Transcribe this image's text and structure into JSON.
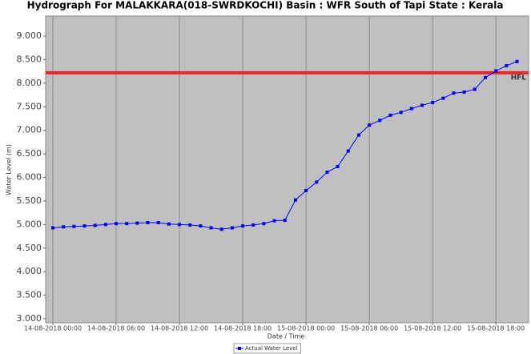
{
  "chart_data": {
    "type": "line",
    "title": "Hydrograph For MALAKKARA(018-SWRDKOCHI) Basin : WFR South of Tapi State : Kerala",
    "x_label": "Date / Time",
    "y_label": "Water Level (m)",
    "x": [
      "2018-08-14T00:00",
      "2018-08-14T01:00",
      "2018-08-14T02:00",
      "2018-08-14T03:00",
      "2018-08-14T04:00",
      "2018-08-14T05:00",
      "2018-08-14T06:00",
      "2018-08-14T07:00",
      "2018-08-14T08:00",
      "2018-08-14T09:00",
      "2018-08-14T10:00",
      "2018-08-14T11:00",
      "2018-08-14T12:00",
      "2018-08-14T13:00",
      "2018-08-14T14:00",
      "2018-08-14T15:00",
      "2018-08-14T16:00",
      "2018-08-14T17:00",
      "2018-08-14T18:00",
      "2018-08-14T19:00",
      "2018-08-14T20:00",
      "2018-08-14T21:00",
      "2018-08-14T22:00",
      "2018-08-14T23:00",
      "2018-08-15T00:00",
      "2018-08-15T01:00",
      "2018-08-15T02:00",
      "2018-08-15T03:00",
      "2018-08-15T04:00",
      "2018-08-15T05:00",
      "2018-08-15T06:00",
      "2018-08-15T07:00",
      "2018-08-15T08:00",
      "2018-08-15T09:00",
      "2018-08-15T10:00",
      "2018-08-15T11:00",
      "2018-08-15T12:00",
      "2018-08-15T13:00",
      "2018-08-15T14:00",
      "2018-08-15T15:00",
      "2018-08-15T16:00",
      "2018-08-15T17:00",
      "2018-08-15T18:00",
      "2018-08-15T19:00",
      "2018-08-15T20:00"
    ],
    "series": [
      {
        "name": "Actual Water Level",
        "color": "#0000ff",
        "values": [
          4.93,
          4.95,
          4.96,
          4.97,
          4.98,
          5.0,
          5.02,
          5.02,
          5.03,
          5.04,
          5.04,
          5.01,
          5.0,
          4.99,
          4.97,
          4.93,
          4.9,
          4.93,
          4.97,
          4.99,
          5.02,
          5.08,
          5.09,
          5.52,
          5.72,
          5.9,
          6.11,
          6.23,
          6.56,
          6.9,
          7.11,
          7.21,
          7.32,
          7.38,
          7.46,
          7.53,
          7.59,
          7.68,
          7.79,
          7.81,
          7.87,
          8.12,
          8.26,
          8.37,
          8.46
        ]
      }
    ],
    "reference_line": {
      "label": "HFL",
      "value": 8.22,
      "color": "#e8262a"
    },
    "xlim": [
      "2018-08-13T23:19",
      "2018-08-15T21:06"
    ],
    "xticks": [
      {
        "value": "2018-08-14T00:00",
        "label": "14-08-2018 00:00"
      },
      {
        "value": "2018-08-14T06:00",
        "label": "14-08-2018 06:00"
      },
      {
        "value": "2018-08-14T12:00",
        "label": "14-08-2018 12:00"
      },
      {
        "value": "2018-08-14T18:00",
        "label": "14-08-2018 18:00"
      },
      {
        "value": "2018-08-15T00:00",
        "label": "15-08-2018 00:00"
      },
      {
        "value": "2018-08-15T06:00",
        "label": "15-08-2018 06:00"
      },
      {
        "value": "2018-08-15T12:00",
        "label": "15-08-2018 12:00"
      },
      {
        "value": "2018-08-15T18:00",
        "label": "15-08-2018 18:00"
      }
    ],
    "ylim": [
      2.915,
      9.425
    ],
    "yticks": [
      {
        "value": 3,
        "label": "3.000"
      },
      {
        "value": 3.5,
        "label": "3.500"
      },
      {
        "value": 4,
        "label": "4.000"
      },
      {
        "value": 4.5,
        "label": "4.500"
      },
      {
        "value": 5,
        "label": "5.000"
      },
      {
        "value": 5.5,
        "label": "5.500"
      },
      {
        "value": 6,
        "label": "6.000"
      },
      {
        "value": 6.5,
        "label": "6.500"
      },
      {
        "value": 7,
        "label": "7.000"
      },
      {
        "value": 7.5,
        "label": "7.500"
      },
      {
        "value": 8,
        "label": "8.000"
      },
      {
        "value": 8.5,
        "label": "8.500"
      },
      {
        "value": 9,
        "label": "9.000"
      }
    ],
    "grid": "x",
    "plot_background": "#c0c0c0",
    "legend": "bottom"
  }
}
